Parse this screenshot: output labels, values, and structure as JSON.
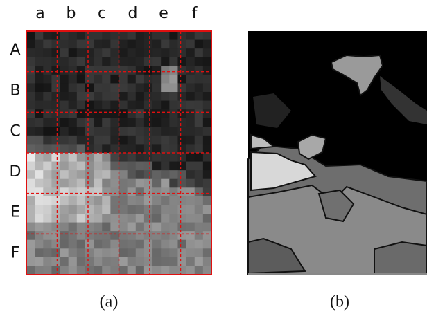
{
  "columns": [
    "a",
    "b",
    "c",
    "d",
    "e",
    "f"
  ],
  "rows": [
    "A",
    "B",
    "C",
    "D",
    "E",
    "F"
  ],
  "captions": [
    "(a)",
    "(b)"
  ]
}
